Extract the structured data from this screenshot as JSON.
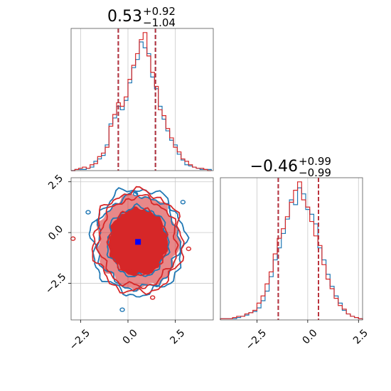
{
  "chart_data": {
    "type": "corner",
    "colors": {
      "blue": "#1f77b4",
      "red": "#d62728",
      "median_marker": "#0000ff"
    },
    "panels": [
      {
        "name": "param-1-marginal",
        "type": "histogram",
        "title": {
          "main": "0.53",
          "sup": "+0.92",
          "sub": "−1.04"
        },
        "xlim": [
          -3.0,
          4.5
        ],
        "quantile_lines": [
          -0.51,
          1.45
        ],
        "x_ticks": [
          -2.5,
          0.0,
          2.5
        ],
        "grid": true,
        "bin_edges": [
          -3.0,
          -2.8,
          -2.6,
          -2.4,
          -2.2,
          -2.0,
          -1.8,
          -1.6,
          -1.4,
          -1.2,
          -1.0,
          -0.8,
          -0.6,
          -0.4,
          -0.2,
          0.0,
          0.2,
          0.4,
          0.6,
          0.8,
          1.0,
          1.2,
          1.4,
          1.6,
          1.8,
          2.0,
          2.2,
          2.4,
          2.6,
          2.8,
          3.0,
          3.2,
          3.4,
          3.6,
          3.8,
          4.0,
          4.2,
          4.4
        ],
        "series": [
          {
            "name": "blue",
            "values": [
              0,
              1,
              1,
              1,
              2,
              3,
              8,
              10,
              13,
              22,
              40,
              45,
              55,
              52,
              60,
              75,
              88,
              95,
              110,
              105,
              100,
              80,
              70,
              55,
              44,
              34,
              26,
              22,
              14,
              9,
              5,
              4,
              3,
              2,
              1,
              1,
              1
            ]
          },
          {
            "name": "red",
            "values": [
              0,
              1,
              2,
              3,
              2,
              5,
              6,
              12,
              15,
              20,
              38,
              48,
              58,
              55,
              63,
              78,
              90,
              100,
              112,
              118,
              98,
              84,
              72,
              52,
              47,
              36,
              28,
              20,
              16,
              10,
              8,
              5,
              3,
              2,
              2,
              1,
              0
            ]
          }
        ]
      },
      {
        "name": "joint-2d",
        "type": "contour",
        "xlim": [
          -3.0,
          4.5
        ],
        "ylim": [
          -4.3,
          2.7
        ],
        "x_ticks": [
          -2.5,
          0.0,
          2.5
        ],
        "y_ticks": [
          2.5,
          0.0,
          -2.5
        ],
        "median_point": [
          0.53,
          -0.46
        ],
        "grid": true
      },
      {
        "name": "param-2-marginal",
        "type": "histogram",
        "title": {
          "main": "−0.46",
          "sup": "+0.99",
          "sub": "−0.99"
        },
        "xlim": [
          -4.3,
          2.7
        ],
        "quantile_lines": [
          -1.45,
          0.53
        ],
        "x_ticks": [
          -2.5,
          0.0,
          2.5
        ],
        "grid": true,
        "bin_edges": [
          -4.3,
          -4.1,
          -3.9,
          -3.7,
          -3.5,
          -3.3,
          -3.1,
          -2.9,
          -2.7,
          -2.5,
          -2.3,
          -2.1,
          -1.9,
          -1.7,
          -1.5,
          -1.3,
          -1.1,
          -0.9,
          -0.7,
          -0.5,
          -0.3,
          -0.1,
          0.1,
          0.3,
          0.5,
          0.7,
          0.9,
          1.1,
          1.3,
          1.5,
          1.7,
          1.9,
          2.1,
          2.3,
          2.5,
          2.7
        ],
        "series": [
          {
            "name": "blue",
            "values": [
              1,
              1,
              1,
              1,
              2,
              3,
              4,
              6,
              7,
              10,
              16,
              24,
              36,
              50,
              60,
              72,
              84,
              100,
              96,
              110,
              105,
              92,
              88,
              80,
              60,
              50,
              38,
              28,
              20,
              14,
              8,
              5,
              3,
              2,
              1
            ]
          },
          {
            "name": "red",
            "values": [
              1,
              1,
              1,
              2,
              3,
              3,
              5,
              6,
              8,
              14,
              20,
              30,
              40,
              55,
              68,
              76,
              86,
              98,
              108,
              115,
              100,
              94,
              82,
              70,
              62,
              46,
              34,
              26,
              18,
              12,
              9,
              5,
              3,
              2,
              1
            ]
          }
        ]
      }
    ]
  }
}
